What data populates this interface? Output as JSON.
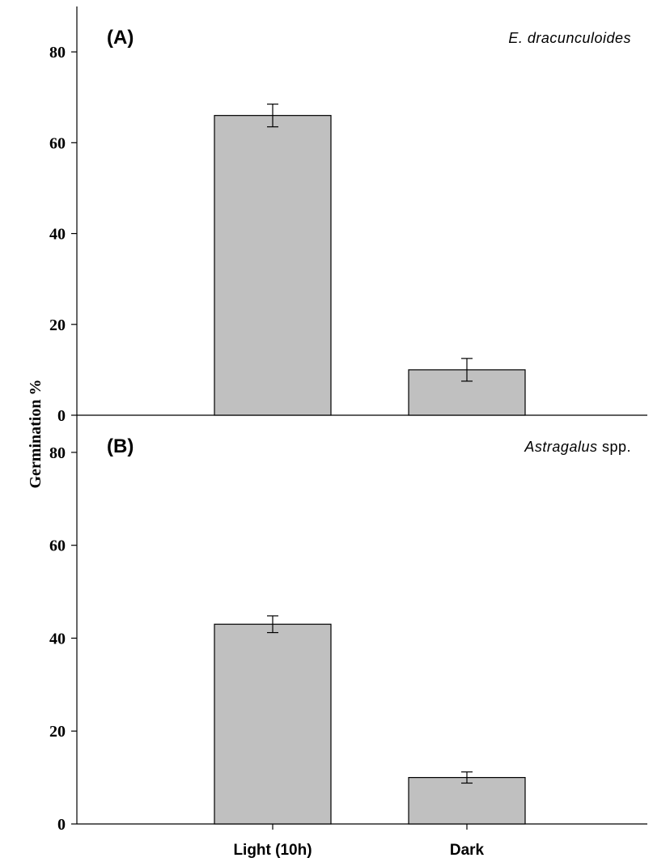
{
  "chart_data": {
    "type": "bar",
    "ylabel": "Germination %",
    "categories": [
      "Light (10h)",
      "Dark"
    ],
    "bar_color": "#c0c0c0",
    "panels": [
      {
        "label": "(A)",
        "species_italic": "E. dracunculoides",
        "species_plain": "",
        "values": [
          66,
          10
        ],
        "errors": [
          2.5,
          2.5
        ],
        "ylim": [
          0,
          90
        ],
        "yticks": [
          0,
          20,
          40,
          60,
          80
        ]
      },
      {
        "label": "(B)",
        "species_italic": "Astragalus",
        "species_plain": " spp.",
        "values": [
          43,
          10
        ],
        "errors": [
          1.8,
          1.2
        ],
        "ylim": [
          0,
          88
        ],
        "yticks": [
          0,
          20,
          40,
          60,
          80
        ]
      }
    ]
  }
}
